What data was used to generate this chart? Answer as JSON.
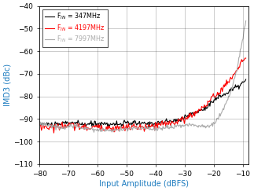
{
  "title": "",
  "xlabel": "Input Amplitude (dBFS)",
  "ylabel": "IMD3 (dBc)",
  "xlim": [
    -80,
    -8
  ],
  "ylim": [
    -110,
    -40
  ],
  "xticks": [
    -80,
    -70,
    -60,
    -50,
    -40,
    -30,
    -20,
    -10
  ],
  "yticks": [
    -110,
    -100,
    -90,
    -80,
    -70,
    -60,
    -50,
    -40
  ],
  "legend": [
    {
      "label": "F$_{IN}$ = 347MHz",
      "color": "black"
    },
    {
      "label": "F$_{IN}$ = 4197MHz",
      "color": "red"
    },
    {
      "label": "F$_{IN}$ = 7997MHz",
      "color": "#aaaaaa"
    }
  ],
  "line_colors": [
    "black",
    "red",
    "#aaaaaa"
  ],
  "background_color": "#ffffff",
  "xlabel_color": "#1a7abf",
  "ylabel_color": "#1a7abf",
  "black_x": [
    -80,
    -78,
    -76,
    -74,
    -72,
    -70,
    -68,
    -66,
    -64,
    -62,
    -60,
    -58,
    -56,
    -54,
    -52,
    -50,
    -48,
    -46,
    -44,
    -42,
    -40,
    -38,
    -36,
    -34,
    -32,
    -30,
    -28,
    -26,
    -24,
    -22,
    -20,
    -18,
    -16,
    -14,
    -12,
    -10,
    -9
  ],
  "black_y": [
    -92,
    -92.3,
    -92.5,
    -92.8,
    -92,
    -91.5,
    -91.8,
    -92.2,
    -92.5,
    -92.3,
    -92,
    -92.1,
    -92.3,
    -92.4,
    -92.2,
    -92,
    -91.8,
    -92,
    -92.2,
    -92,
    -91.8,
    -91.5,
    -91.2,
    -91,
    -90.5,
    -89,
    -88,
    -87,
    -86,
    -84,
    -82,
    -80,
    -79,
    -77,
    -76,
    -74,
    -73
  ],
  "red_x": [
    -80,
    -78,
    -76,
    -74,
    -72,
    -70,
    -68,
    -66,
    -64,
    -62,
    -60,
    -58,
    -56,
    -54,
    -52,
    -50,
    -48,
    -46,
    -44,
    -42,
    -40,
    -38,
    -36,
    -34,
    -32,
    -30,
    -28,
    -26,
    -24,
    -22,
    -20,
    -18,
    -16,
    -14,
    -12,
    -10,
    -9
  ],
  "red_y": [
    -93,
    -93.5,
    -93.8,
    -93.5,
    -93,
    -92.8,
    -93,
    -93.5,
    -94,
    -93.8,
    -93.5,
    -93.8,
    -94,
    -94.2,
    -94,
    -93.8,
    -93.5,
    -93.8,
    -94,
    -93.5,
    -93,
    -92.5,
    -92,
    -91.5,
    -91,
    -90,
    -88.5,
    -87,
    -85,
    -83,
    -80,
    -78,
    -75,
    -72,
    -68,
    -64,
    -63
  ],
  "gray_x": [
    -80,
    -78,
    -76,
    -74,
    -72,
    -70,
    -68,
    -66,
    -64,
    -62,
    -60,
    -58,
    -56,
    -54,
    -52,
    -50,
    -48,
    -46,
    -44,
    -42,
    -40,
    -38,
    -36,
    -34,
    -32,
    -30,
    -28,
    -26,
    -24,
    -22,
    -20,
    -18,
    -16,
    -14,
    -12,
    -10,
    -9
  ],
  "gray_y": [
    -92,
    -92.5,
    -93,
    -93.5,
    -93.8,
    -93.5,
    -93,
    -93.5,
    -94,
    -94.5,
    -94.8,
    -95,
    -95.2,
    -95,
    -94.8,
    -94.5,
    -94.2,
    -94,
    -94.2,
    -94.5,
    -94.5,
    -94.2,
    -93.8,
    -93.5,
    -93,
    -92.8,
    -92.5,
    -92.8,
    -93,
    -93.5,
    -92,
    -89,
    -84,
    -77,
    -68,
    -54,
    -47
  ]
}
